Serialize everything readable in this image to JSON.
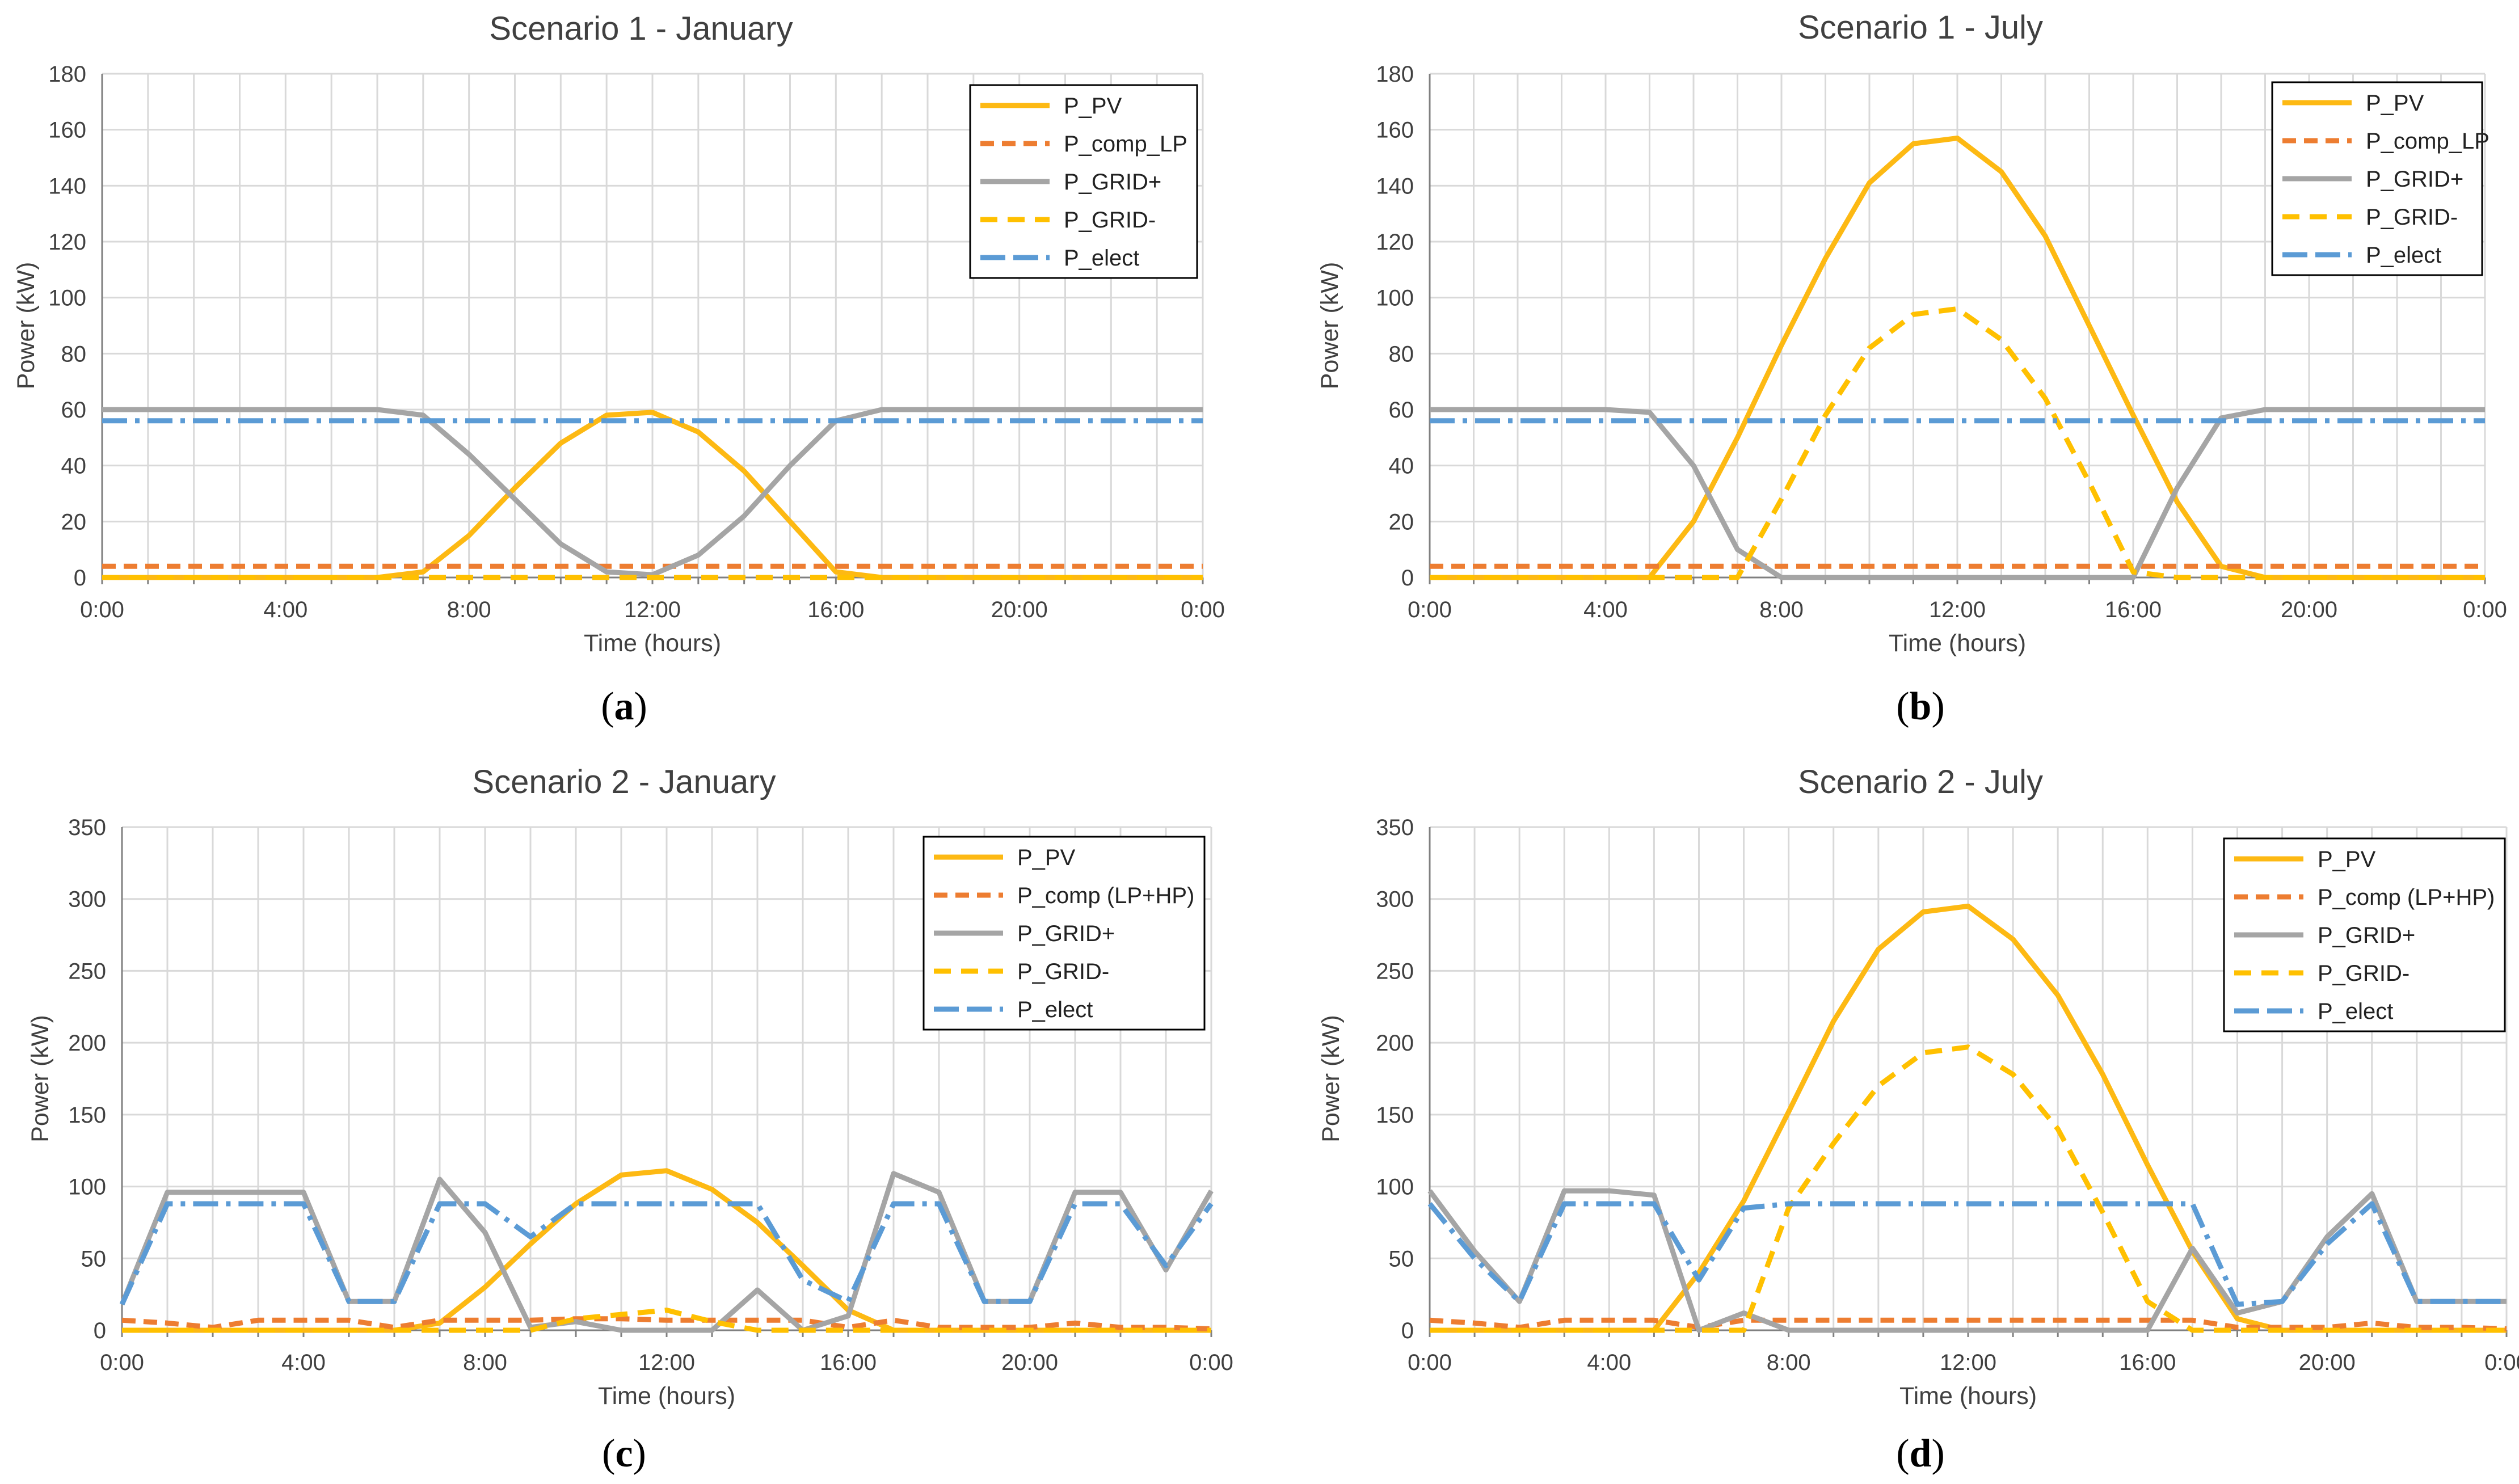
{
  "colors": {
    "P_PV": "#FDB913",
    "P_comp": "#ED7D31",
    "P_GRID_plus": "#A5A5A5",
    "P_GRID_minus": "#FFC000",
    "P_elect": "#5B9BD5",
    "grid": "#D9D9D9",
    "axis": "#808080"
  },
  "chart_data": [
    {
      "type": "line",
      "panel": "(a)",
      "panel_letter": "a",
      "title": "Scenario 1 - January",
      "xlabel": "Time (hours)",
      "ylabel": "Power (kW)",
      "xlim": [
        0,
        24
      ],
      "ylim": [
        0,
        180
      ],
      "yticks": [
        0,
        20,
        40,
        60,
        80,
        100,
        120,
        140,
        160,
        180
      ],
      "xticks": [
        "0:00",
        "4:00",
        "8:00",
        "12:00",
        "16:00",
        "20:00",
        "0:00"
      ],
      "legend_position": "top-right",
      "x": [
        0,
        1,
        2,
        3,
        4,
        5,
        6,
        7,
        8,
        9,
        10,
        11,
        12,
        13,
        14,
        15,
        16,
        17,
        18,
        19,
        20,
        21,
        22,
        23,
        24
      ],
      "series": [
        {
          "name": "P_PV",
          "values": [
            0,
            0,
            0,
            0,
            0,
            0,
            0,
            2,
            15,
            32,
            48,
            58,
            59,
            52,
            38,
            20,
            2,
            0,
            0,
            0,
            0,
            0,
            0,
            0,
            0
          ]
        },
        {
          "name": "P_comp_LP",
          "values": [
            4,
            4,
            4,
            4,
            4,
            4,
            4,
            4,
            4,
            4,
            4,
            4,
            4,
            4,
            4,
            4,
            4,
            4,
            4,
            4,
            4,
            4,
            4,
            4,
            4
          ]
        },
        {
          "name": "P_GRID+",
          "values": [
            60,
            60,
            60,
            60,
            60,
            60,
            60,
            58,
            44,
            28,
            12,
            2,
            1,
            8,
            22,
            40,
            56,
            60,
            60,
            60,
            60,
            60,
            60,
            60,
            60
          ]
        },
        {
          "name": "P_GRID-",
          "values": [
            0,
            0,
            0,
            0,
            0,
            0,
            0,
            0,
            0,
            0,
            0,
            0,
            0,
            0,
            0,
            0,
            0,
            0,
            0,
            0,
            0,
            0,
            0,
            0,
            0
          ]
        },
        {
          "name": "P_elect",
          "values": [
            56,
            56,
            56,
            56,
            56,
            56,
            56,
            56,
            56,
            56,
            56,
            56,
            56,
            56,
            56,
            56,
            56,
            56,
            56,
            56,
            56,
            56,
            56,
            56,
            56
          ]
        }
      ]
    },
    {
      "type": "line",
      "panel": "(b)",
      "panel_letter": "b",
      "title": "Scenario 1 - July",
      "xlabel": "Time (hours)",
      "ylabel": "Power (kW)",
      "xlim": [
        0,
        24
      ],
      "ylim": [
        0,
        180
      ],
      "yticks": [
        0,
        20,
        40,
        60,
        80,
        100,
        120,
        140,
        160,
        180
      ],
      "xticks": [
        "0:00",
        "4:00",
        "8:00",
        "12:00",
        "16:00",
        "20:00",
        "0:00"
      ],
      "legend_position": "top-right",
      "x": [
        0,
        1,
        2,
        3,
        4,
        5,
        6,
        7,
        8,
        9,
        10,
        11,
        12,
        13,
        14,
        15,
        16,
        17,
        18,
        19,
        20,
        21,
        22,
        23,
        24
      ],
      "series": [
        {
          "name": "P_PV",
          "values": [
            0,
            0,
            0,
            0,
            0,
            0,
            20,
            50,
            83,
            114,
            141,
            155,
            157,
            145,
            122,
            90,
            58,
            27,
            4,
            0,
            0,
            0,
            0,
            0,
            0
          ]
        },
        {
          "name": "P_comp_LP",
          "values": [
            4,
            4,
            4,
            4,
            4,
            4,
            4,
            4,
            4,
            4,
            4,
            4,
            4,
            4,
            4,
            4,
            4,
            4,
            4,
            4,
            4,
            4,
            4,
            4,
            4
          ]
        },
        {
          "name": "P_GRID+",
          "values": [
            60,
            60,
            60,
            60,
            60,
            59,
            40,
            10,
            0,
            0,
            0,
            0,
            0,
            0,
            0,
            0,
            0,
            32,
            57,
            60,
            60,
            60,
            60,
            60,
            60
          ]
        },
        {
          "name": "P_GRID-",
          "values": [
            0,
            0,
            0,
            0,
            0,
            0,
            0,
            0,
            28,
            58,
            82,
            94,
            96,
            85,
            64,
            34,
            2,
            0,
            0,
            0,
            0,
            0,
            0,
            0,
            0
          ]
        },
        {
          "name": "P_elect",
          "values": [
            56,
            56,
            56,
            56,
            56,
            56,
            56,
            56,
            56,
            56,
            56,
            56,
            56,
            56,
            56,
            56,
            56,
            56,
            56,
            56,
            56,
            56,
            56,
            56,
            56
          ]
        }
      ]
    },
    {
      "type": "line",
      "panel": "(c)",
      "panel_letter": "c",
      "title": "Scenario 2 - January",
      "xlabel": "Time (hours)",
      "ylabel": "Power (kW)",
      "xlim": [
        0,
        24
      ],
      "ylim": [
        0,
        350
      ],
      "yticks": [
        0,
        50,
        100,
        150,
        200,
        250,
        300,
        350
      ],
      "xticks": [
        "0:00",
        "4:00",
        "8:00",
        "12:00",
        "16:00",
        "20:00",
        "0:00"
      ],
      "legend_position": "top-right",
      "x": [
        0,
        1,
        2,
        3,
        4,
        5,
        6,
        7,
        8,
        9,
        10,
        11,
        12,
        13,
        14,
        15,
        16,
        17,
        18,
        19,
        20,
        21,
        22,
        23,
        24
      ],
      "series": [
        {
          "name": "P_PV",
          "values": [
            0,
            0,
            0,
            0,
            0,
            0,
            0,
            5,
            30,
            60,
            88,
            108,
            111,
            98,
            75,
            45,
            14,
            0,
            0,
            0,
            0,
            0,
            0,
            0,
            0
          ]
        },
        {
          "name": "P_comp (LP+HP)",
          "values": [
            7,
            5,
            2,
            7,
            7,
            7,
            2,
            7,
            7,
            7,
            8,
            8,
            7,
            7,
            7,
            7,
            2,
            7,
            2,
            2,
            2,
            5,
            2,
            2,
            1
          ]
        },
        {
          "name": "P_GRID+",
          "values": [
            18,
            96,
            96,
            96,
            96,
            20,
            20,
            105,
            68,
            2,
            6,
            0,
            0,
            0,
            28,
            0,
            10,
            109,
            96,
            20,
            20,
            96,
            96,
            42,
            97
          ]
        },
        {
          "name": "P_GRID-",
          "values": [
            0,
            0,
            0,
            0,
            0,
            0,
            0,
            0,
            0,
            0,
            8,
            11,
            14,
            6,
            0,
            0,
            0,
            0,
            0,
            0,
            0,
            0,
            0,
            0,
            0
          ]
        },
        {
          "name": "P_elect",
          "values": [
            18,
            88,
            88,
            88,
            88,
            20,
            20,
            88,
            88,
            65,
            88,
            88,
            88,
            88,
            88,
            35,
            20,
            88,
            88,
            20,
            20,
            88,
            88,
            45,
            88
          ]
        }
      ]
    },
    {
      "type": "line",
      "panel": "(d)",
      "panel_letter": "d",
      "title": "Scenario 2 - July",
      "xlabel": "Time (hours)",
      "ylabel": "Power (kW)",
      "xlim": [
        0,
        24
      ],
      "ylim": [
        0,
        350
      ],
      "yticks": [
        0,
        50,
        100,
        150,
        200,
        250,
        300,
        350
      ],
      "xticks": [
        "0:00",
        "4:00",
        "8:00",
        "12:00",
        "16:00",
        "20:00",
        "0:00"
      ],
      "legend_position": "top-right",
      "x": [
        0,
        1,
        2,
        3,
        4,
        5,
        6,
        7,
        8,
        9,
        10,
        11,
        12,
        13,
        14,
        15,
        16,
        17,
        18,
        19,
        20,
        21,
        22,
        23,
        24
      ],
      "series": [
        {
          "name": "P_PV",
          "values": [
            0,
            0,
            0,
            0,
            0,
            0,
            40,
            90,
            152,
            215,
            265,
            291,
            295,
            272,
            233,
            178,
            115,
            55,
            8,
            0,
            0,
            0,
            0,
            0,
            0
          ]
        },
        {
          "name": "P_comp (LP+HP)",
          "values": [
            7,
            5,
            2,
            7,
            7,
            7,
            2,
            7,
            7,
            7,
            7,
            7,
            7,
            7,
            7,
            7,
            7,
            7,
            2,
            2,
            2,
            5,
            2,
            2,
            1
          ]
        },
        {
          "name": "P_GRID+",
          "values": [
            97,
            55,
            20,
            97,
            97,
            94,
            0,
            12,
            0,
            0,
            0,
            0,
            0,
            0,
            0,
            0,
            0,
            57,
            12,
            20,
            65,
            95,
            20,
            20,
            20
          ]
        },
        {
          "name": "P_GRID-",
          "values": [
            0,
            0,
            0,
            0,
            0,
            0,
            0,
            0,
            85,
            130,
            170,
            193,
            197,
            178,
            140,
            82,
            20,
            0,
            0,
            0,
            0,
            0,
            0,
            0,
            0
          ]
        },
        {
          "name": "P_elect",
          "values": [
            88,
            50,
            20,
            88,
            88,
            88,
            35,
            85,
            88,
            88,
            88,
            88,
            88,
            88,
            88,
            88,
            88,
            88,
            18,
            20,
            60,
            88,
            20,
            20,
            20
          ]
        }
      ]
    }
  ]
}
